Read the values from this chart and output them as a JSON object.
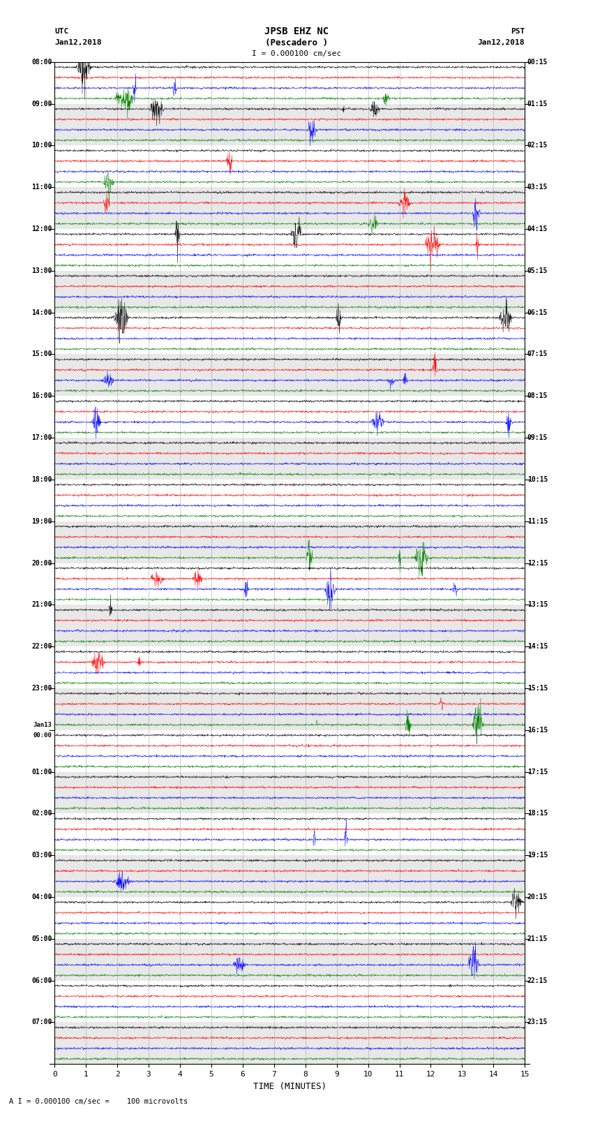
{
  "title_line1": "JPSB EHZ NC",
  "title_line2": "(Pescadero )",
  "title_line3": "I = 0.000100 cm/sec",
  "left_header_line1": "UTC",
  "left_header_line2": "Jan12,2018",
  "right_header_line1": "PST",
  "right_header_line2": "Jan12,2018",
  "bottom_label": "TIME (MINUTES)",
  "bottom_note": "A I = 0.000100 cm/sec =    100 microvolts",
  "utc_times": [
    "08:00",
    "09:00",
    "10:00",
    "11:00",
    "12:00",
    "13:00",
    "14:00",
    "15:00",
    "16:00",
    "17:00",
    "18:00",
    "19:00",
    "20:00",
    "21:00",
    "22:00",
    "23:00",
    "Jan13",
    "01:00",
    "02:00",
    "03:00",
    "04:00",
    "05:00",
    "06:00",
    "07:00"
  ],
  "utc_times_sub": [
    "",
    "",
    "",
    "",
    "",
    "",
    "",
    "",
    "",
    "",
    "",
    "",
    "",
    "",
    "",
    "",
    "00:00",
    "",
    "",
    "",
    "",
    "",
    "",
    ""
  ],
  "pst_times": [
    "00:15",
    "01:15",
    "02:15",
    "03:15",
    "04:15",
    "05:15",
    "06:15",
    "07:15",
    "08:15",
    "09:15",
    "10:15",
    "11:15",
    "12:15",
    "13:15",
    "14:15",
    "15:15",
    "16:15",
    "17:15",
    "18:15",
    "19:15",
    "20:15",
    "21:15",
    "22:15",
    "23:15"
  ],
  "trace_colors": [
    "black",
    "red",
    "blue",
    "green"
  ],
  "n_hours": 24,
  "traces_per_hour": 4,
  "figsize": [
    8.5,
    16.13
  ],
  "bg_color": "white",
  "alt_bg_color": "#e8e8e8",
  "trace_amplitude": 0.3,
  "noise_amplitude": 0.08,
  "x_ticks": [
    0,
    1,
    2,
    3,
    4,
    5,
    6,
    7,
    8,
    9,
    10,
    11,
    12,
    13,
    14,
    15
  ],
  "x_range": [
    0,
    15
  ],
  "seed": 42,
  "n_samples": 1800,
  "linewidth": 0.35
}
